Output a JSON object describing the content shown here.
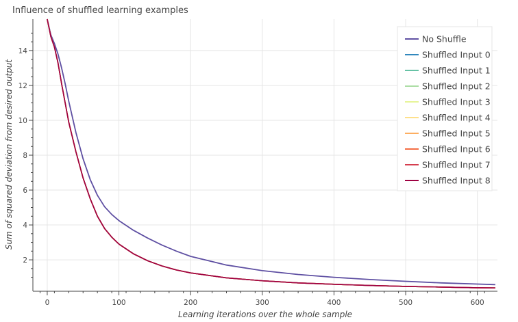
{
  "chart_data": {
    "type": "line",
    "title": "Influence of shuffled learning examples",
    "xlabel": "Learning iterations over the whole sample",
    "ylabel": "Sum of squared deviation from desired output",
    "xlim": [
      -20,
      628
    ],
    "ylim": [
      0.2,
      15.8
    ],
    "x_ticks": [
      0,
      100,
      200,
      300,
      400,
      500,
      600
    ],
    "y_ticks": [
      2,
      4,
      6,
      8,
      10,
      12,
      14
    ],
    "grid": true,
    "legend_position": "top-right",
    "x": [
      0,
      5,
      10,
      15,
      20,
      25,
      30,
      40,
      50,
      60,
      70,
      80,
      90,
      100,
      120,
      140,
      160,
      180,
      200,
      250,
      300,
      350,
      400,
      450,
      500,
      550,
      600,
      625
    ],
    "series": [
      {
        "name": "No Shuffle",
        "color": "#5e4fa2",
        "values": [
          15.8,
          14.9,
          14.4,
          13.8,
          13.0,
          12.1,
          11.1,
          9.3,
          7.8,
          6.6,
          5.7,
          5.05,
          4.6,
          4.25,
          3.7,
          3.25,
          2.85,
          2.5,
          2.2,
          1.7,
          1.38,
          1.16,
          1.0,
          0.87,
          0.77,
          0.68,
          0.61,
          0.58
        ]
      },
      {
        "name": "Shuffled Input 0",
        "color": "#3288bd",
        "values": [
          15.8,
          14.8,
          14.2,
          13.3,
          12.1,
          11.0,
          9.9,
          8.2,
          6.7,
          5.5,
          4.5,
          3.8,
          3.3,
          2.9,
          2.35,
          1.95,
          1.65,
          1.42,
          1.25,
          0.97,
          0.8,
          0.68,
          0.6,
          0.53,
          0.48,
          0.44,
          0.4,
          0.39
        ]
      },
      {
        "name": "Shuffled Input 1",
        "color": "#66c2a5",
        "values": [
          15.8,
          14.8,
          14.2,
          13.3,
          12.1,
          11.0,
          9.9,
          8.2,
          6.7,
          5.5,
          4.5,
          3.8,
          3.3,
          2.9,
          2.35,
          1.95,
          1.65,
          1.42,
          1.25,
          0.97,
          0.8,
          0.68,
          0.6,
          0.53,
          0.48,
          0.44,
          0.4,
          0.39
        ]
      },
      {
        "name": "Shuffled Input 2",
        "color": "#abdda4",
        "values": [
          15.8,
          14.8,
          14.2,
          13.3,
          12.1,
          11.0,
          9.9,
          8.2,
          6.7,
          5.5,
          4.5,
          3.8,
          3.3,
          2.9,
          2.35,
          1.95,
          1.65,
          1.42,
          1.25,
          0.97,
          0.8,
          0.68,
          0.6,
          0.53,
          0.48,
          0.44,
          0.4,
          0.39
        ]
      },
      {
        "name": "Shuffled Input 3",
        "color": "#e6f598",
        "values": [
          15.8,
          14.8,
          14.2,
          13.3,
          12.1,
          11.0,
          9.9,
          8.2,
          6.7,
          5.5,
          4.5,
          3.8,
          3.3,
          2.9,
          2.35,
          1.95,
          1.65,
          1.42,
          1.25,
          0.97,
          0.8,
          0.68,
          0.6,
          0.53,
          0.48,
          0.44,
          0.4,
          0.39
        ]
      },
      {
        "name": "Shuffled Input 4",
        "color": "#fee08b",
        "values": [
          15.8,
          14.8,
          14.2,
          13.3,
          12.1,
          11.0,
          9.9,
          8.2,
          6.7,
          5.5,
          4.5,
          3.8,
          3.3,
          2.9,
          2.35,
          1.95,
          1.65,
          1.42,
          1.25,
          0.97,
          0.8,
          0.68,
          0.6,
          0.53,
          0.48,
          0.44,
          0.4,
          0.39
        ]
      },
      {
        "name": "Shuffled Input 5",
        "color": "#fdae61",
        "values": [
          15.8,
          14.8,
          14.2,
          13.3,
          12.1,
          11.0,
          9.9,
          8.2,
          6.7,
          5.5,
          4.5,
          3.8,
          3.3,
          2.9,
          2.35,
          1.95,
          1.65,
          1.42,
          1.25,
          0.97,
          0.8,
          0.68,
          0.6,
          0.53,
          0.48,
          0.44,
          0.4,
          0.39
        ]
      },
      {
        "name": "Shuffled Input 6",
        "color": "#f46d43",
        "values": [
          15.8,
          14.8,
          14.2,
          13.3,
          12.1,
          11.0,
          9.9,
          8.2,
          6.7,
          5.5,
          4.5,
          3.8,
          3.3,
          2.9,
          2.35,
          1.95,
          1.65,
          1.42,
          1.25,
          0.97,
          0.8,
          0.68,
          0.6,
          0.53,
          0.48,
          0.44,
          0.4,
          0.39
        ]
      },
      {
        "name": "Shuffled Input 7",
        "color": "#d53e4f",
        "values": [
          15.8,
          14.8,
          14.2,
          13.3,
          12.1,
          11.0,
          9.9,
          8.2,
          6.7,
          5.5,
          4.5,
          3.8,
          3.3,
          2.9,
          2.35,
          1.95,
          1.65,
          1.42,
          1.25,
          0.97,
          0.8,
          0.68,
          0.6,
          0.53,
          0.48,
          0.44,
          0.4,
          0.39
        ]
      },
      {
        "name": "Shuffled Input 8",
        "color": "#9e0142",
        "values": [
          15.8,
          14.8,
          14.2,
          13.3,
          12.1,
          11.0,
          9.9,
          8.2,
          6.7,
          5.5,
          4.5,
          3.8,
          3.3,
          2.9,
          2.35,
          1.95,
          1.65,
          1.42,
          1.25,
          0.97,
          0.8,
          0.68,
          0.6,
          0.53,
          0.48,
          0.44,
          0.4,
          0.39
        ]
      }
    ]
  }
}
